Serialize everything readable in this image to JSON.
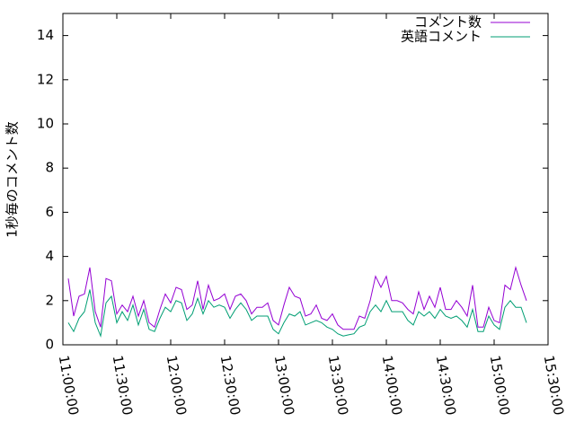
{
  "chart_data": {
    "type": "line",
    "ylabel": "1秒毎のコメント数",
    "x": [
      "11:03:00",
      "11:06:00",
      "11:09:00",
      "11:12:00",
      "11:15:00",
      "11:18:00",
      "11:21:00",
      "11:24:00",
      "11:27:00",
      "11:30:00",
      "11:33:00",
      "11:36:00",
      "11:39:00",
      "11:42:00",
      "11:45:00",
      "11:48:00",
      "11:51:00",
      "11:54:00",
      "11:57:00",
      "12:00:00",
      "12:03:00",
      "12:06:00",
      "12:09:00",
      "12:12:00",
      "12:15:00",
      "12:18:00",
      "12:21:00",
      "12:24:00",
      "12:27:00",
      "12:30:00",
      "12:33:00",
      "12:36:00",
      "12:39:00",
      "12:42:00",
      "12:45:00",
      "12:48:00",
      "12:51:00",
      "12:54:00",
      "12:57:00",
      "13:00:00",
      "13:03:00",
      "13:06:00",
      "13:09:00",
      "13:12:00",
      "13:15:00",
      "13:18:00",
      "13:21:00",
      "13:24:00",
      "13:27:00",
      "13:30:00",
      "13:33:00",
      "13:36:00",
      "13:39:00",
      "13:42:00",
      "13:45:00",
      "13:48:00",
      "13:51:00",
      "13:54:00",
      "13:57:00",
      "14:00:00",
      "14:03:00",
      "14:06:00",
      "14:09:00",
      "14:12:00",
      "14:15:00",
      "14:18:00",
      "14:21:00",
      "14:24:00",
      "14:27:00",
      "14:30:00",
      "14:33:00",
      "14:36:00",
      "14:39:00",
      "14:42:00",
      "14:45:00",
      "14:48:00",
      "14:51:00",
      "14:54:00",
      "14:57:00",
      "15:00:00",
      "15:03:00",
      "15:06:00",
      "15:09:00",
      "15:12:00",
      "15:15:00",
      "15:18:00"
    ],
    "series": [
      {
        "name": "コメント数",
        "color": "#9400d3",
        "values": [
          3.0,
          1.3,
          2.2,
          2.3,
          3.5,
          1.5,
          0.8,
          3.0,
          2.9,
          1.4,
          1.8,
          1.5,
          2.2,
          1.3,
          2.0,
          1.0,
          0.8,
          1.6,
          2.3,
          1.9,
          2.6,
          2.5,
          1.6,
          1.8,
          2.9,
          1.6,
          2.7,
          2.0,
          2.1,
          2.3,
          1.6,
          2.2,
          2.3,
          2.0,
          1.4,
          1.7,
          1.7,
          1.9,
          1.1,
          0.9,
          1.8,
          2.6,
          2.2,
          2.1,
          1.3,
          1.4,
          1.8,
          1.2,
          1.1,
          1.4,
          0.9,
          0.7,
          0.7,
          0.7,
          1.3,
          1.2,
          2.0,
          3.1,
          2.6,
          3.1,
          2.0,
          2.0,
          1.9,
          1.6,
          1.4,
          2.4,
          1.6,
          2.2,
          1.7,
          2.6,
          1.6,
          1.6,
          2.0,
          1.7,
          1.3,
          2.7,
          0.8,
          0.8,
          1.7,
          1.1,
          1.0,
          2.7,
          2.5,
          3.5,
          2.7,
          2.0
        ]
      },
      {
        "name": "英語コメント",
        "color": "#009e73",
        "values": [
          1.0,
          0.6,
          1.2,
          1.5,
          2.5,
          1.0,
          0.4,
          1.9,
          2.2,
          1.0,
          1.5,
          1.1,
          1.8,
          0.9,
          1.6,
          0.7,
          0.6,
          1.2,
          1.7,
          1.5,
          2.0,
          1.9,
          1.1,
          1.4,
          2.1,
          1.4,
          2.0,
          1.7,
          1.8,
          1.7,
          1.2,
          1.6,
          1.9,
          1.6,
          1.1,
          1.3,
          1.3,
          1.3,
          0.7,
          0.5,
          1.0,
          1.4,
          1.3,
          1.5,
          0.9,
          1.0,
          1.1,
          1.0,
          0.8,
          0.7,
          0.5,
          0.4,
          0.45,
          0.5,
          0.8,
          0.9,
          1.5,
          1.8,
          1.5,
          2.0,
          1.5,
          1.5,
          1.5,
          1.1,
          0.9,
          1.5,
          1.3,
          1.5,
          1.2,
          1.6,
          1.3,
          1.2,
          1.3,
          1.1,
          0.8,
          1.6,
          0.6,
          0.6,
          1.3,
          0.9,
          0.7,
          1.7,
          2.0,
          1.7,
          1.7,
          1.0
        ]
      }
    ],
    "xlim": [
      "11:00:00",
      "15:30:00"
    ],
    "xticks": [
      "11:00:00",
      "11:30:00",
      "12:00:00",
      "12:30:00",
      "13:00:00",
      "13:30:00",
      "14:00:00",
      "14:30:00",
      "15:00:00",
      "15:30:00"
    ],
    "ylim": [
      0,
      15
    ],
    "yticks": [
      0,
      2,
      4,
      6,
      8,
      10,
      12,
      14
    ],
    "legend": "upper-right"
  }
}
